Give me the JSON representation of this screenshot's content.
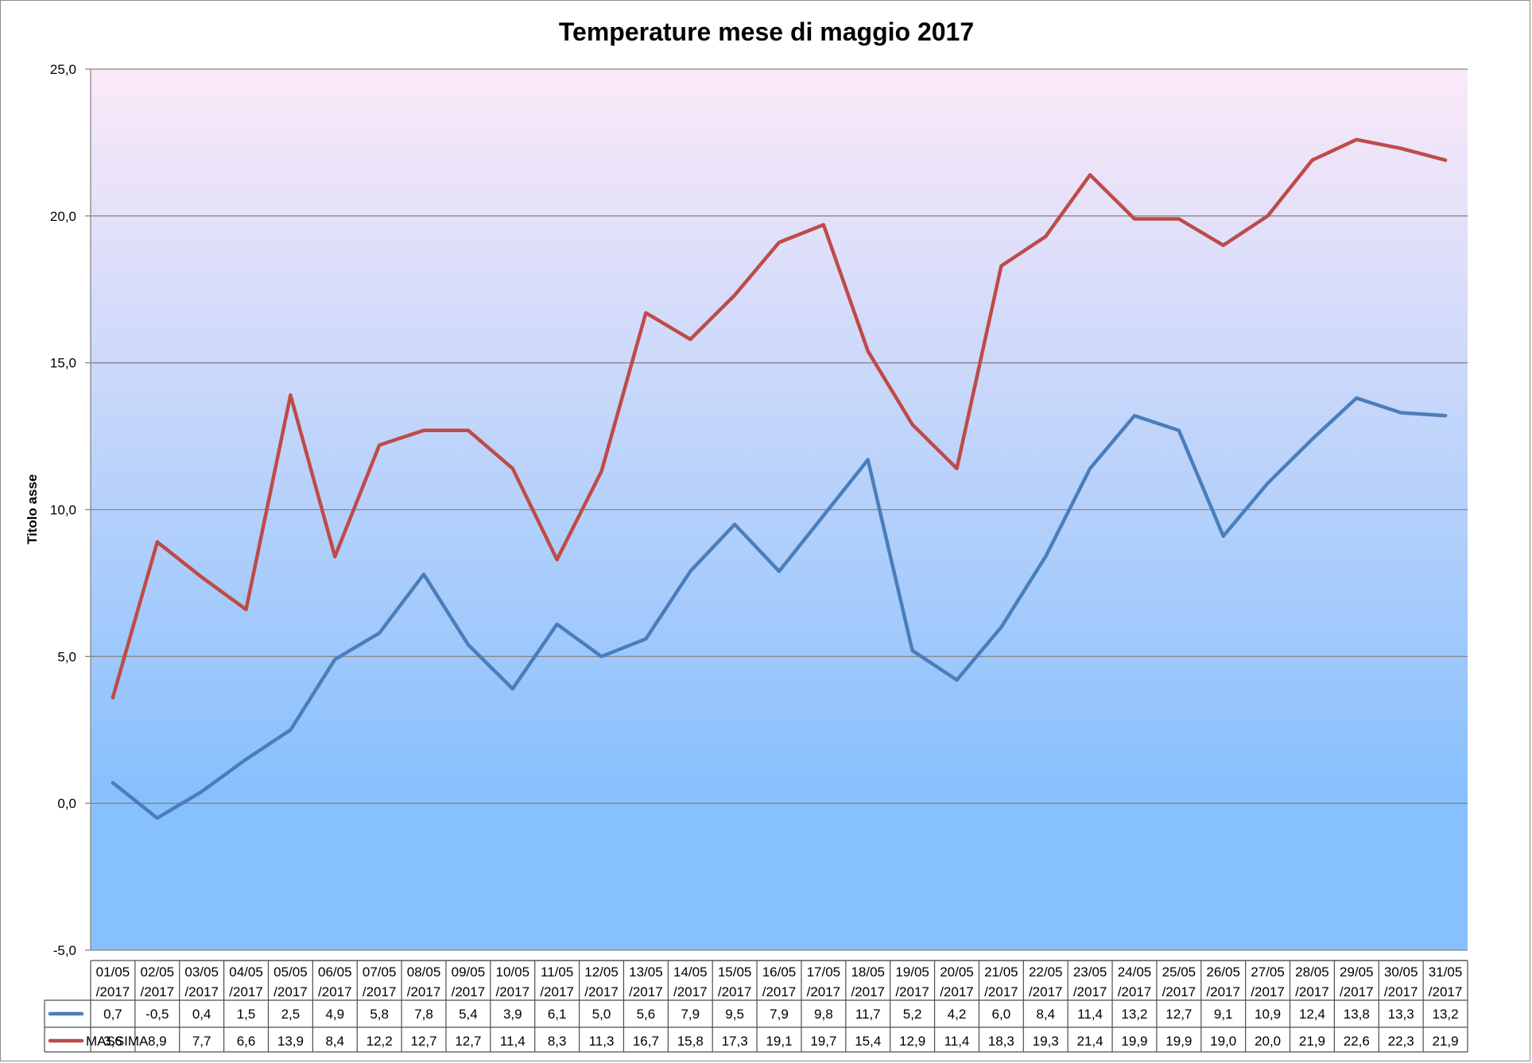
{
  "chart_data": {
    "type": "line",
    "title": "Temperature mese di maggio 2017",
    "ylabel": "Titolo asse",
    "xlabel": "",
    "ylim": [
      -5,
      25
    ],
    "yticks": [
      "25,0",
      "20,0",
      "15,0",
      "10,0",
      "5,0",
      "0,0",
      "-5,0"
    ],
    "ytick_values": [
      25,
      20,
      15,
      10,
      5,
      0,
      -5
    ],
    "grid": true,
    "legend": "data-table",
    "categories": [
      [
        "01/05",
        "/2017"
      ],
      [
        "02/05",
        "/2017"
      ],
      [
        "03/05",
        "/2017"
      ],
      [
        "04/05",
        "/2017"
      ],
      [
        "05/05",
        "/2017"
      ],
      [
        "06/05",
        "/2017"
      ],
      [
        "07/05",
        "/2017"
      ],
      [
        "08/05",
        "/2017"
      ],
      [
        "09/05",
        "/2017"
      ],
      [
        "10/05",
        "/2017"
      ],
      [
        "11/05",
        "/2017"
      ],
      [
        "12/05",
        "/2017"
      ],
      [
        "13/05",
        "/2017"
      ],
      [
        "14/05",
        "/2017"
      ],
      [
        "15/05",
        "/2017"
      ],
      [
        "16/05",
        "/2017"
      ],
      [
        "17/05",
        "/2017"
      ],
      [
        "18/05",
        "/2017"
      ],
      [
        "19/05",
        "/2017"
      ],
      [
        "20/05",
        "/2017"
      ],
      [
        "21/05",
        "/2017"
      ],
      [
        "22/05",
        "/2017"
      ],
      [
        "23/05",
        "/2017"
      ],
      [
        "24/05",
        "/2017"
      ],
      [
        "25/05",
        "/2017"
      ],
      [
        "26/05",
        "/2017"
      ],
      [
        "27/05",
        "/2017"
      ],
      [
        "28/05",
        "/2017"
      ],
      [
        "29/05",
        "/2017"
      ],
      [
        "30/05",
        "/2017"
      ],
      [
        "31/05",
        "/2017"
      ]
    ],
    "series": [
      {
        "name": "",
        "color": "#4a7ebb",
        "values": [
          0.7,
          -0.5,
          0.4,
          1.5,
          2.5,
          4.9,
          5.8,
          7.8,
          5.4,
          3.9,
          6.1,
          5.0,
          5.6,
          7.9,
          9.5,
          7.9,
          9.8,
          11.7,
          5.2,
          4.2,
          6.0,
          8.4,
          11.4,
          13.2,
          12.7,
          9.1,
          10.9,
          12.4,
          13.8,
          13.3,
          13.2
        ],
        "labels": [
          "0,7",
          "-0,5",
          "0,4",
          "1,5",
          "2,5",
          "4,9",
          "5,8",
          "7,8",
          "5,4",
          "3,9",
          "6,1",
          "5,0",
          "5,6",
          "7,9",
          "9,5",
          "7,9",
          "9,8",
          "11,7",
          "5,2",
          "4,2",
          "6,0",
          "8,4",
          "11,4",
          "13,2",
          "12,7",
          "9,1",
          "10,9",
          "12,4",
          "13,8",
          "13,3",
          "13,2"
        ]
      },
      {
        "name": "MASSIMA",
        "color": "#be4b48",
        "values": [
          3.6,
          8.9,
          7.7,
          6.6,
          13.9,
          8.4,
          12.2,
          12.7,
          12.7,
          11.4,
          8.3,
          11.3,
          16.7,
          15.8,
          17.3,
          19.1,
          19.7,
          15.4,
          12.9,
          11.4,
          18.3,
          19.3,
          21.4,
          19.9,
          19.9,
          19.0,
          20.0,
          21.9,
          22.6,
          22.3,
          21.9
        ],
        "labels": [
          "3,6",
          "8,9",
          "7,7",
          "6,6",
          "13,9",
          "8,4",
          "12,2",
          "12,7",
          "12,7",
          "11,4",
          "8,3",
          "11,3",
          "16,7",
          "15,8",
          "17,3",
          "19,1",
          "19,7",
          "15,4",
          "12,9",
          "11,4",
          "18,3",
          "19,3",
          "21,4",
          "19,9",
          "19,9",
          "19,0",
          "20,0",
          "21,9",
          "22,6",
          "22,3",
          "21,9"
        ]
      }
    ],
    "background_gradient": [
      "#fbe9f8",
      "#86c0fd"
    ]
  }
}
